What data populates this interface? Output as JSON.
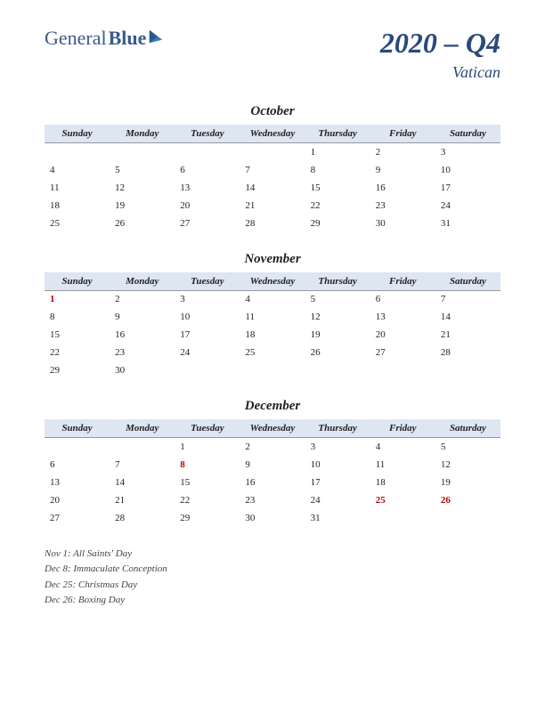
{
  "logo": {
    "text1": "General",
    "text2": "Blue"
  },
  "title": {
    "main": "2020 – Q4",
    "sub": "Vatican"
  },
  "day_headers": [
    "Sunday",
    "Monday",
    "Tuesday",
    "Wednesday",
    "Thursday",
    "Friday",
    "Saturday"
  ],
  "colors": {
    "header_bg": "#dde6f2",
    "title_color": "#2a4a7a",
    "logo_color": "#3a5a8a",
    "holiday_color": "#c00000",
    "text_color": "#222222",
    "bg": "#ffffff"
  },
  "months": [
    {
      "name": "October",
      "weeks": [
        [
          "",
          "",
          "",
          "",
          "1",
          "2",
          "3"
        ],
        [
          "4",
          "5",
          "6",
          "7",
          "8",
          "9",
          "10"
        ],
        [
          "11",
          "12",
          "13",
          "14",
          "15",
          "16",
          "17"
        ],
        [
          "18",
          "19",
          "20",
          "21",
          "22",
          "23",
          "24"
        ],
        [
          "25",
          "26",
          "27",
          "28",
          "29",
          "30",
          "31"
        ]
      ],
      "holidays": []
    },
    {
      "name": "November",
      "weeks": [
        [
          "1",
          "2",
          "3",
          "4",
          "5",
          "6",
          "7"
        ],
        [
          "8",
          "9",
          "10",
          "11",
          "12",
          "13",
          "14"
        ],
        [
          "15",
          "16",
          "17",
          "18",
          "19",
          "20",
          "21"
        ],
        [
          "22",
          "23",
          "24",
          "25",
          "26",
          "27",
          "28"
        ],
        [
          "29",
          "30",
          "",
          "",
          "",
          "",
          ""
        ]
      ],
      "holidays": [
        "1"
      ]
    },
    {
      "name": "December",
      "weeks": [
        [
          "",
          "",
          "1",
          "2",
          "3",
          "4",
          "5"
        ],
        [
          "6",
          "7",
          "8",
          "9",
          "10",
          "11",
          "12"
        ],
        [
          "13",
          "14",
          "15",
          "16",
          "17",
          "18",
          "19"
        ],
        [
          "20",
          "21",
          "22",
          "23",
          "24",
          "25",
          "26"
        ],
        [
          "27",
          "28",
          "29",
          "30",
          "31",
          "",
          ""
        ]
      ],
      "holidays": [
        "8",
        "25",
        "26"
      ]
    }
  ],
  "holiday_notes": [
    "Nov 1: All Saints' Day",
    "Dec 8: Immaculate Conception",
    "Dec 25: Christmas Day",
    "Dec 26: Boxing Day"
  ]
}
